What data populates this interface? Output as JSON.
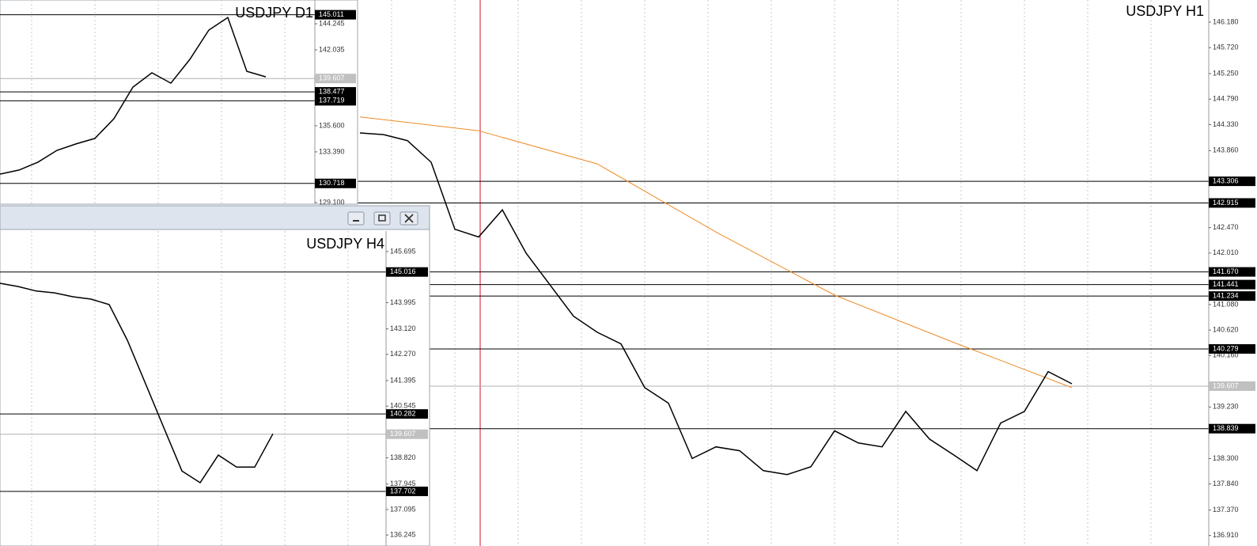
{
  "windows": [
    {
      "title": "USDJPY H1",
      "ylim": [
        136.72,
        146.58
      ],
      "yticks": [
        {
          "value": 146.18,
          "label": "146.180"
        },
        {
          "value": 145.72,
          "label": "145.720"
        },
        {
          "value": 145.25,
          "label": "145.250"
        },
        {
          "value": 144.79,
          "label": "144.790"
        },
        {
          "value": 144.33,
          "label": "144.330"
        },
        {
          "value": 143.86,
          "label": "143.860"
        },
        {
          "value": 142.47,
          "label": "142.470"
        },
        {
          "value": 142.01,
          "label": "142.010"
        },
        {
          "value": 141.08,
          "label": "141.080"
        },
        {
          "value": 140.62,
          "label": "140.620"
        },
        {
          "value": 140.16,
          "label": "140.160"
        },
        {
          "value": 139.23,
          "label": "139.230"
        },
        {
          "value": 138.3,
          "label": "138.300"
        },
        {
          "value": 137.84,
          "label": "137.840"
        },
        {
          "value": 137.37,
          "label": "137.370"
        },
        {
          "value": 136.91,
          "label": "136.910"
        }
      ],
      "levels": [
        {
          "value": 143.306,
          "label": "143.306"
        },
        {
          "value": 142.915,
          "label": "142.915"
        },
        {
          "value": 141.67,
          "label": "141.670"
        },
        {
          "value": 141.441,
          "label": "141.441"
        },
        {
          "value": 141.234,
          "label": "141.234"
        },
        {
          "value": 140.279,
          "label": "140.279"
        },
        {
          "value": 138.839,
          "label": "138.839"
        }
      ],
      "current": {
        "value": 139.607,
        "label": "139.607"
      },
      "close": [
        144.18,
        144.15,
        144.04,
        143.65,
        142.44,
        142.3,
        142.79,
        142.01,
        141.44,
        140.87,
        140.58,
        140.37,
        139.58,
        139.3,
        138.3,
        138.51,
        138.44,
        138.08,
        138.01,
        138.15,
        138.8,
        138.58,
        138.51,
        139.15,
        138.65,
        138.37,
        138.08,
        138.94,
        139.15,
        139.87,
        139.65
      ],
      "ma": [
        144.47,
        144.22,
        143.62,
        142.39,
        141.25,
        140.4,
        139.58
      ]
    },
    {
      "title": "USDJPY D1",
      "ylim": [
        128.96,
        146.26
      ],
      "yticks": [
        {
          "value": 144.245,
          "label": "144.245"
        },
        {
          "value": 142.035,
          "label": "142.035"
        },
        {
          "value": 135.6,
          "label": "135.600"
        },
        {
          "value": 133.39,
          "label": "133.390"
        },
        {
          "value": 129.1,
          "label": "129.100"
        }
      ],
      "levels": [
        {
          "value": 145.011,
          "label": "145.011"
        },
        {
          "value": 138.477,
          "label": "138.477"
        },
        {
          "value": 137.719,
          "label": "137.719"
        },
        {
          "value": 130.718,
          "label": "130.718"
        }
      ],
      "current": {
        "value": 139.607,
        "label": "139.607"
      },
      "close": [
        131.51,
        131.85,
        132.52,
        133.52,
        134.06,
        134.53,
        136.2,
        138.88,
        140.09,
        139.21,
        141.23,
        143.71,
        144.78,
        140.22,
        139.75
      ]
    },
    {
      "title": "USDJPY H4",
      "ylim": [
        135.88,
        146.38
      ],
      "yticks": [
        {
          "value": 145.695,
          "label": "145.695"
        },
        {
          "value": 143.995,
          "label": "143.995"
        },
        {
          "value": 143.12,
          "label": "143.120"
        },
        {
          "value": 142.27,
          "label": "142.270"
        },
        {
          "value": 141.395,
          "label": "141.395"
        },
        {
          "value": 140.545,
          "label": "140.545"
        },
        {
          "value": 138.82,
          "label": "138.820"
        },
        {
          "value": 137.945,
          "label": "137.945"
        },
        {
          "value": 137.095,
          "label": "137.095"
        },
        {
          "value": 136.245,
          "label": "136.245"
        }
      ],
      "levels": [
        {
          "value": 145.016,
          "label": "145.016"
        },
        {
          "value": 140.282,
          "label": "140.282"
        },
        {
          "value": 137.702,
          "label": "137.702"
        }
      ],
      "current": {
        "value": 139.607,
        "label": "139.607"
      },
      "close": [
        144.64,
        144.53,
        144.38,
        144.32,
        144.19,
        144.11,
        143.93,
        142.74,
        141.29,
        139.83,
        138.38,
        137.99,
        138.91,
        138.51,
        138.51,
        139.62
      ]
    }
  ]
}
